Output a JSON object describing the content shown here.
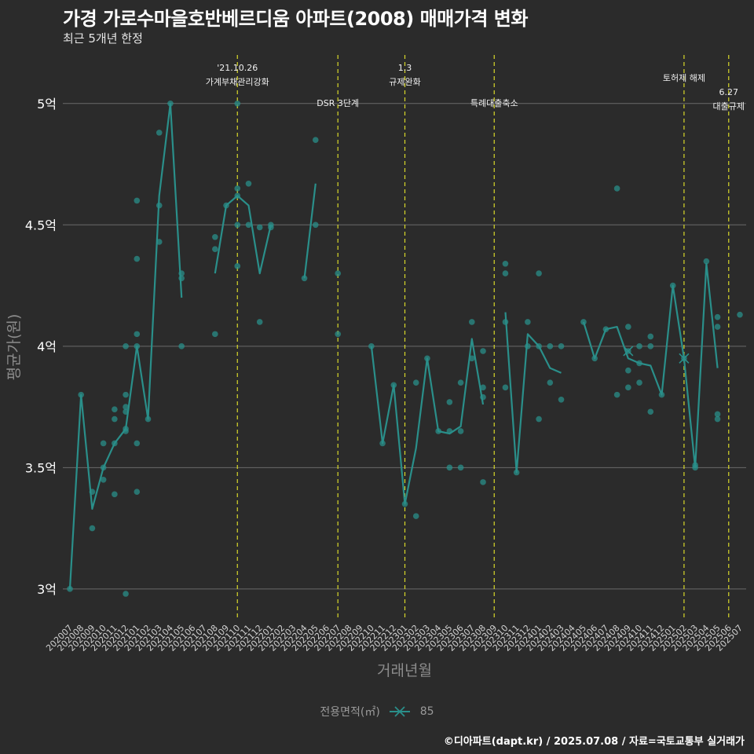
{
  "title": "가경 가로수마을호반베르디움 아파트(2008) 매매가격 변화",
  "subtitle": "최근 5개년 한정",
  "caption": "©디아파트(dapt.kr) / 2025.07.08 / 자료=국토교통부 실거래가",
  "legend": {
    "title": "전용면적(㎡)",
    "label": "85"
  },
  "colors": {
    "background": "#2b2b2b",
    "series": "#2a8f8a",
    "grid": "#6a6a6a",
    "event": "#d9d92a",
    "text": "#ffffff",
    "muted": "#8c8c8c"
  },
  "chart_data": {
    "type": "line",
    "xlabel": "거래년월",
    "ylabel": "평균가(원)",
    "ylim": [
      2.87,
      5.2
    ],
    "yticks": [
      3,
      3.5,
      4,
      4.5,
      5
    ],
    "ytick_labels": [
      "3억",
      "3.5억",
      "4억",
      "4.5억",
      "5억"
    ],
    "grid": true,
    "categories": [
      "202007",
      "202008",
      "202009",
      "202010",
      "202011",
      "202012",
      "202101",
      "202102",
      "202103",
      "202104",
      "202105",
      "202106",
      "202107",
      "202108",
      "202109",
      "202110",
      "202111",
      "202112",
      "202201",
      "202202",
      "202203",
      "202204",
      "202205",
      "202206",
      "202207",
      "202208",
      "202209",
      "202210",
      "202211",
      "202212",
      "202301",
      "202302",
      "202303",
      "202304",
      "202305",
      "202306",
      "202307",
      "202308",
      "202309",
      "202310",
      "202311",
      "202312",
      "202401",
      "202402",
      "202403",
      "202404",
      "202405",
      "202406",
      "202407",
      "202408",
      "202409",
      "202410",
      "202411",
      "202412",
      "202501",
      "202502",
      "202503",
      "202504",
      "202505",
      "202506",
      "202507"
    ],
    "series": [
      {
        "name": "85",
        "line": [
          [
            [
              0,
              3.0
            ],
            [
              1,
              3.8
            ],
            [
              2,
              3.33
            ],
            [
              3,
              3.5
            ],
            [
              4,
              3.6
            ],
            [
              5,
              3.66
            ],
            [
              6,
              4.0
            ],
            [
              7,
              3.7
            ],
            [
              8,
              4.62
            ],
            [
              9,
              5.0
            ],
            [
              10,
              4.2
            ]
          ],
          [
            [
              13,
              4.3
            ],
            [
              14,
              4.58
            ],
            [
              15,
              4.62
            ],
            [
              16,
              4.58
            ],
            [
              17,
              4.3
            ],
            [
              18,
              4.5
            ]
          ],
          [
            [
              21,
              4.28
            ],
            [
              22,
              4.67
            ]
          ],
          [
            [
              27,
              4.0
            ],
            [
              28,
              3.6
            ],
            [
              29,
              3.84
            ],
            [
              30,
              3.35
            ],
            [
              31,
              3.58
            ],
            [
              32,
              3.95
            ],
            [
              33,
              3.65
            ],
            [
              34,
              3.64
            ],
            [
              35,
              3.67
            ],
            [
              36,
              4.03
            ],
            [
              37,
              3.76
            ]
          ],
          [
            [
              39,
              4.14
            ],
            [
              40,
              3.48
            ],
            [
              41,
              4.05
            ],
            [
              42,
              4.0
            ],
            [
              43,
              3.91
            ],
            [
              44,
              3.89
            ]
          ],
          [
            [
              46,
              4.1
            ],
            [
              47,
              3.95
            ],
            [
              48,
              4.07
            ],
            [
              49,
              4.08
            ],
            [
              50,
              3.95
            ],
            [
              51,
              3.93
            ],
            [
              52,
              3.92
            ],
            [
              53,
              3.8
            ],
            [
              54,
              4.25
            ],
            [
              55,
              3.95
            ],
            [
              56,
              3.5
            ],
            [
              57,
              4.34
            ],
            [
              58,
              3.91
            ]
          ]
        ],
        "points": [
          [
            0,
            3.0
          ],
          [
            1,
            3.8
          ],
          [
            2,
            3.4
          ],
          [
            2,
            3.25
          ],
          [
            3,
            3.6
          ],
          [
            3,
            3.5
          ],
          [
            3,
            3.45
          ],
          [
            4,
            3.74
          ],
          [
            4,
            3.7
          ],
          [
            4,
            3.6
          ],
          [
            4,
            3.39
          ],
          [
            5,
            4.0
          ],
          [
            5,
            3.8
          ],
          [
            5,
            3.75
          ],
          [
            5,
            3.73
          ],
          [
            5,
            3.66
          ],
          [
            5,
            3.65
          ],
          [
            5,
            2.98
          ],
          [
            6,
            4.6
          ],
          [
            6,
            4.36
          ],
          [
            6,
            4.05
          ],
          [
            6,
            4.0
          ],
          [
            6,
            3.6
          ],
          [
            6,
            3.4
          ],
          [
            7,
            3.7
          ],
          [
            8,
            4.88
          ],
          [
            8,
            4.58
          ],
          [
            8,
            4.43
          ],
          [
            9,
            5.0
          ],
          [
            10,
            4.3
          ],
          [
            10,
            4.28
          ],
          [
            10,
            4.0
          ],
          [
            13,
            4.45
          ],
          [
            13,
            4.4
          ],
          [
            13,
            4.05
          ],
          [
            14,
            4.58
          ],
          [
            15,
            5.0
          ],
          [
            15,
            4.65
          ],
          [
            15,
            4.62
          ],
          [
            15,
            4.5
          ],
          [
            15,
            4.33
          ],
          [
            16,
            4.67
          ],
          [
            16,
            4.5
          ],
          [
            17,
            4.49
          ],
          [
            17,
            4.1
          ],
          [
            18,
            4.5
          ],
          [
            18,
            4.49
          ],
          [
            21,
            4.28
          ],
          [
            22,
            4.85
          ],
          [
            22,
            4.5
          ],
          [
            24,
            4.3
          ],
          [
            24,
            4.05
          ],
          [
            27,
            4.0
          ],
          [
            28,
            3.6
          ],
          [
            29,
            3.84
          ],
          [
            30,
            3.35
          ],
          [
            31,
            3.85
          ],
          [
            31,
            3.3
          ],
          [
            32,
            3.95
          ],
          [
            33,
            3.65
          ],
          [
            34,
            3.77
          ],
          [
            34,
            3.65
          ],
          [
            34,
            3.5
          ],
          [
            35,
            3.85
          ],
          [
            35,
            3.65
          ],
          [
            35,
            3.5
          ],
          [
            36,
            4.1
          ],
          [
            36,
            3.95
          ],
          [
            37,
            3.98
          ],
          [
            37,
            3.83
          ],
          [
            37,
            3.79
          ],
          [
            37,
            3.44
          ],
          [
            39,
            4.34
          ],
          [
            39,
            4.3
          ],
          [
            39,
            4.1
          ],
          [
            39,
            3.83
          ],
          [
            40,
            3.48
          ],
          [
            41,
            4.1
          ],
          [
            41,
            4.0
          ],
          [
            42,
            4.3
          ],
          [
            42,
            4.0
          ],
          [
            42,
            3.7
          ],
          [
            43,
            4.0
          ],
          [
            43,
            3.85
          ],
          [
            44,
            4.0
          ],
          [
            44,
            3.78
          ],
          [
            46,
            4.1
          ],
          [
            47,
            3.95
          ],
          [
            48,
            4.07
          ],
          [
            49,
            4.65
          ],
          [
            49,
            3.8
          ],
          [
            50,
            4.08
          ],
          [
            50,
            3.98
          ],
          [
            50,
            3.9
          ],
          [
            50,
            3.83
          ],
          [
            51,
            4.0
          ],
          [
            51,
            3.93
          ],
          [
            51,
            3.85
          ],
          [
            52,
            4.04
          ],
          [
            52,
            4.0
          ],
          [
            52,
            3.73
          ],
          [
            53,
            3.8
          ],
          [
            54,
            4.25
          ],
          [
            55,
            3.95
          ],
          [
            56,
            3.51
          ],
          [
            56,
            3.5
          ],
          [
            57,
            4.35
          ],
          [
            58,
            4.12
          ],
          [
            58,
            4.08
          ],
          [
            58,
            3.72
          ],
          [
            58,
            3.7
          ],
          [
            60,
            4.13
          ]
        ],
        "cross_markers": [
          [
            50,
            3.98
          ],
          [
            55,
            3.95
          ]
        ]
      }
    ],
    "events": [
      {
        "x": 15,
        "lines": [
          "'21.10.26",
          "가계부채관리강화"
        ],
        "level": 0
      },
      {
        "x": 24,
        "lines": [
          "DSR 3단계"
        ],
        "level": 2
      },
      {
        "x": 30,
        "lines": [
          "1.3",
          "규제완화"
        ],
        "level": 0
      },
      {
        "x": 38,
        "lines": [
          "특례대출축소"
        ],
        "level": 2
      },
      {
        "x": 55,
        "lines": [
          "토허제 해제"
        ],
        "level": 1
      },
      {
        "x": 59,
        "lines": [
          "6.27",
          "대출규제"
        ],
        "level": 3
      }
    ]
  }
}
